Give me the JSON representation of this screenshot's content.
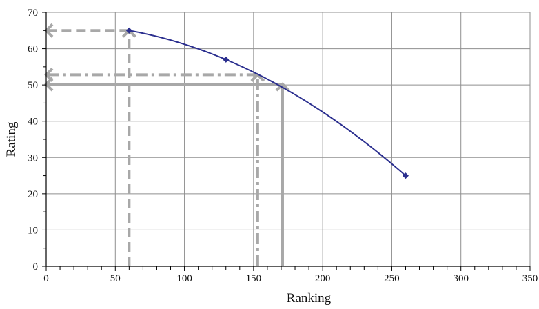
{
  "chart_data": {
    "type": "line",
    "title": "",
    "xlabel": "Ranking",
    "ylabel": "Rating",
    "xlim": [
      0,
      350
    ],
    "ylim": [
      0,
      70
    ],
    "x_major_ticks": [
      0,
      50,
      100,
      150,
      200,
      250,
      300,
      350
    ],
    "x_minor_step": 10,
    "y_major_ticks": [
      0,
      10,
      20,
      30,
      40,
      50,
      60,
      70
    ],
    "y_minor_step": 5,
    "grid": true,
    "legend": "none",
    "series": [
      {
        "color": "#2b2f8f",
        "marker": "diamond",
        "points": [
          [
            60,
            65
          ],
          [
            130,
            57
          ],
          [
            260,
            25
          ]
        ],
        "smooth_curve": true
      }
    ],
    "annotations": [
      {
        "kind": "vertical-arrow-up",
        "style": "dashed",
        "x": 60,
        "y_from": 0,
        "y_to": 65
      },
      {
        "kind": "horizontal-arrow-left",
        "style": "dashed",
        "y": 65,
        "x_from": 60,
        "x_to": 0
      },
      {
        "kind": "vertical-arrow-up",
        "style": "dash-dot",
        "x": 153,
        "y_from": 0,
        "y_to": 52.8
      },
      {
        "kind": "horizontal-arrow-left",
        "style": "dash-dot",
        "y": 52.8,
        "x_from": 153,
        "x_to": 0
      },
      {
        "kind": "vertical-arrow-up",
        "style": "solid",
        "x": 171,
        "y_from": 0,
        "y_to": 50.2
      },
      {
        "kind": "horizontal-arrow-left",
        "style": "solid",
        "y": 50.2,
        "x_from": 171,
        "x_to": 0
      }
    ],
    "annotation_color": "#a8a8a8"
  }
}
